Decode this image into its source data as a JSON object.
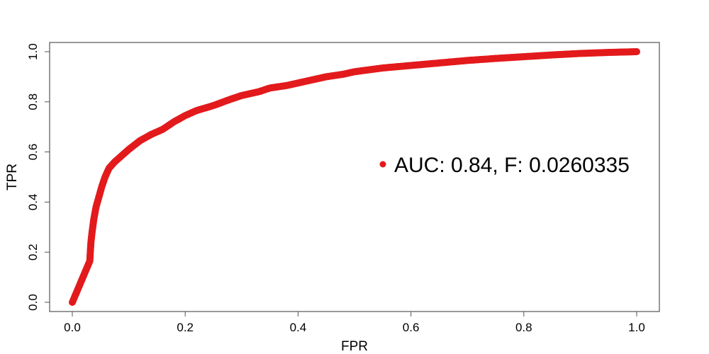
{
  "chart_data": {
    "type": "line",
    "xlabel": "FPR",
    "ylabel": "TPR",
    "xlim": [
      0,
      1
    ],
    "ylim": [
      0,
      1
    ],
    "xticks": [
      "0.0",
      "0.2",
      "0.4",
      "0.6",
      "0.8",
      "1.0"
    ],
    "yticks": [
      "0.0",
      "0.2",
      "0.4",
      "0.6",
      "0.8",
      "1.0"
    ],
    "grid": false,
    "legend_position": "right",
    "series": [
      {
        "name": "AUC: 0.84, F: 0.0260335",
        "color": "#e31a1c",
        "x": [
          0.0,
          0.031,
          0.032,
          0.033,
          0.035,
          0.038,
          0.042,
          0.047,
          0.052,
          0.058,
          0.065,
          0.075,
          0.09,
          0.1,
          0.12,
          0.14,
          0.16,
          0.18,
          0.2,
          0.22,
          0.25,
          0.28,
          0.3,
          0.33,
          0.35,
          0.38,
          0.4,
          0.43,
          0.45,
          0.48,
          0.5,
          0.55,
          0.6,
          0.65,
          0.7,
          0.75,
          0.8,
          0.85,
          0.9,
          0.95,
          1.0
        ],
        "y": [
          0.0,
          0.165,
          0.205,
          0.24,
          0.28,
          0.33,
          0.38,
          0.42,
          0.46,
          0.5,
          0.535,
          0.56,
          0.59,
          0.61,
          0.645,
          0.67,
          0.69,
          0.72,
          0.745,
          0.765,
          0.785,
          0.81,
          0.825,
          0.84,
          0.855,
          0.865,
          0.875,
          0.89,
          0.9,
          0.91,
          0.92,
          0.935,
          0.945,
          0.955,
          0.965,
          0.973,
          0.98,
          0.987,
          0.993,
          0.997,
          1.0
        ]
      }
    ]
  }
}
